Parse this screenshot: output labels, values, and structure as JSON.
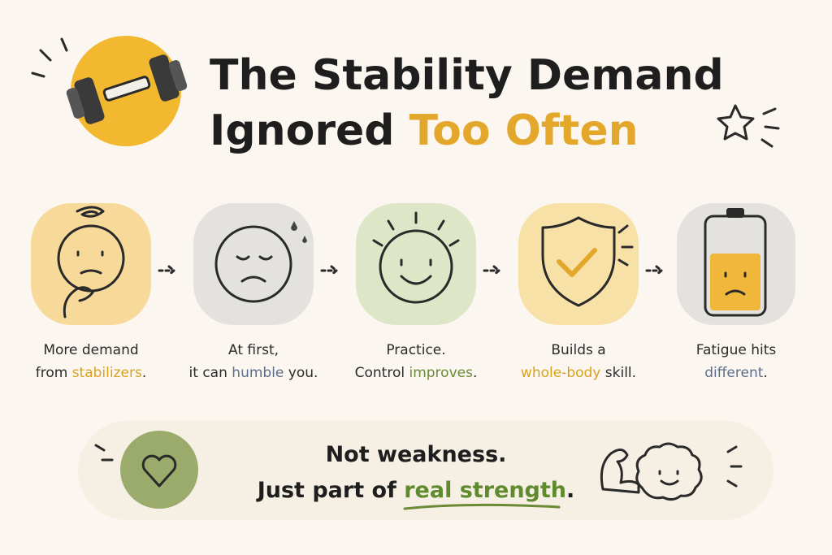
{
  "header": {
    "title_lines": [
      [
        "The Stability Demand"
      ],
      [
        "Ignored ",
        "Too Often"
      ]
    ],
    "accent": "#e3a82b"
  },
  "steps": [
    {
      "lines": [
        [
          "More demand"
        ],
        [
          "from ",
          "stabilizers",
          "."
        ]
      ],
      "accent": "#d9a21e"
    },
    {
      "lines": [
        [
          "At first,"
        ],
        [
          "it can ",
          "humble",
          " you."
        ]
      ],
      "accent": "#5b6f8c"
    },
    {
      "lines": [
        [
          "Practice."
        ],
        [
          "Control ",
          "improves",
          "."
        ]
      ],
      "accent": "#6b8a38"
    },
    {
      "lines": [
        [
          "Builds a"
        ],
        [
          "",
          "whole-body",
          " skill."
        ]
      ],
      "accent": "#d9a21e"
    },
    {
      "lines": [
        [
          "Fatigue hits"
        ],
        [
          "",
          "different",
          "."
        ]
      ],
      "accent": "#5b6f8c"
    }
  ],
  "footer": {
    "lines": [
      [
        "Not weakness."
      ],
      [
        "Just part of ",
        "real strength",
        "."
      ]
    ],
    "accent": "#5f8a2e"
  }
}
